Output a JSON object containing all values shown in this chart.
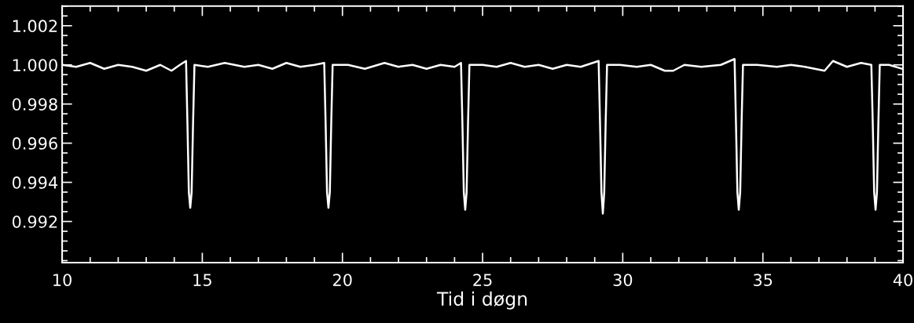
{
  "chart_data": {
    "type": "line",
    "xlabel": "Tid i døgn",
    "x": [
      10.0,
      10.5,
      11.0,
      11.5,
      12.0,
      12.5,
      13.0,
      13.5,
      13.9,
      14.2,
      14.42,
      14.47,
      14.52,
      14.57,
      14.62,
      14.67,
      14.72,
      15.2,
      15.8,
      16.5,
      17.0,
      17.5,
      18.0,
      18.5,
      19.0,
      19.35,
      19.4,
      19.45,
      19.5,
      19.55,
      19.6,
      19.65,
      20.2,
      20.8,
      21.5,
      22.0,
      22.5,
      23.0,
      23.5,
      24.0,
      24.23,
      24.28,
      24.33,
      24.38,
      24.43,
      24.48,
      24.53,
      25.0,
      25.5,
      26.0,
      26.5,
      27.0,
      27.5,
      28.0,
      28.5,
      29.14,
      29.19,
      29.24,
      29.29,
      29.34,
      29.39,
      29.44,
      29.9,
      30.5,
      31.0,
      31.5,
      31.8,
      32.2,
      32.8,
      33.5,
      33.99,
      34.04,
      34.09,
      34.14,
      34.19,
      34.24,
      34.29,
      34.8,
      35.5,
      36.0,
      36.5,
      37.2,
      37.5,
      38.0,
      38.5,
      38.87,
      38.92,
      38.97,
      39.02,
      39.07,
      39.12,
      39.17,
      39.5,
      39.97
    ],
    "series": [
      {
        "color": "#ffffff",
        "values": [
          1.0,
          0.9999,
          1.0001,
          0.9998,
          1.0,
          0.9999,
          0.9997,
          1.0,
          0.9997,
          1.0,
          1.0002,
          0.997,
          0.9935,
          0.9927,
          0.9935,
          0.997,
          1.0,
          0.9999,
          1.0001,
          0.9999,
          1.0,
          0.9998,
          1.0001,
          0.9999,
          1.0,
          1.0001,
          0.997,
          0.9935,
          0.9927,
          0.9935,
          0.997,
          1.0,
          1.0,
          0.9998,
          1.0001,
          0.9999,
          1.0,
          0.9998,
          1.0,
          0.9999,
          1.0001,
          0.997,
          0.9935,
          0.9926,
          0.9935,
          0.997,
          1.0,
          1.0,
          0.9999,
          1.0001,
          0.9999,
          1.0,
          0.9998,
          1.0,
          0.9999,
          1.0002,
          0.997,
          0.9935,
          0.9924,
          0.9935,
          0.997,
          1.0,
          1.0,
          0.9999,
          1.0,
          0.9997,
          0.9997,
          1.0,
          0.9999,
          1.0,
          1.0003,
          0.997,
          0.9935,
          0.9926,
          0.9935,
          0.997,
          1.0,
          1.0,
          0.9999,
          1.0,
          0.9999,
          0.9997,
          1.0002,
          0.9999,
          1.0001,
          1.0,
          0.997,
          0.9935,
          0.9926,
          0.9935,
          0.997,
          1.0,
          1.0,
          0.9998
        ]
      }
    ],
    "xlim": [
      10,
      40
    ],
    "xticks": [
      10,
      15,
      20,
      25,
      30,
      35,
      40
    ],
    "ylim": [
      0.9899,
      1.003
    ],
    "yticks": [
      {
        "value": 0.992,
        "label": "0.992"
      },
      {
        "value": 0.994,
        "label": "0.994"
      },
      {
        "value": 0.996,
        "label": "0.996"
      },
      {
        "value": 0.998,
        "label": "0.998"
      },
      {
        "value": 1.0,
        "label": "1.000"
      },
      {
        "value": 1.002,
        "label": "1.002"
      }
    ],
    "grid": false,
    "legend": false,
    "marker": "none",
    "line_style": "solid"
  }
}
